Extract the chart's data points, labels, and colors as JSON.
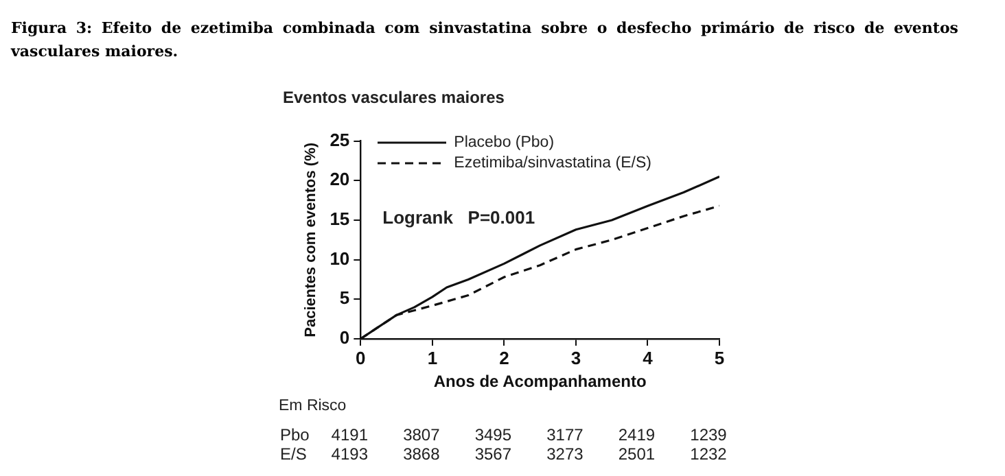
{
  "chart_data": {
    "type": "line",
    "title": "Figura 3: Efeito de ezetimiba combinada com sinvastatina sobre o desfecho primário de risco de eventos vasculares maiores.",
    "subtitle": "Eventos vasculares maiores",
    "xlabel": "Anos de Acompanhamento",
    "ylabel": "Pacientes com eventos (%)",
    "series": [
      {
        "name": "Placebo (Pbo)",
        "color": "#111111",
        "line_style": "solid",
        "x": [
          0,
          0.25,
          0.5,
          0.75,
          1,
          1.2,
          1.5,
          2,
          2.5,
          3,
          3.5,
          4,
          4.5,
          5
        ],
        "values": [
          0,
          1.5,
          3,
          4,
          5.3,
          6.5,
          7.5,
          9.5,
          11.8,
          13.8,
          15,
          16.8,
          18.5,
          20.5
        ]
      },
      {
        "name": "Ezetimiba/sinvastatina (E/S)",
        "color": "#111111",
        "line_style": "dashed",
        "x": [
          0,
          0.25,
          0.5,
          0.75,
          1,
          1.5,
          2,
          2.5,
          3,
          3.5,
          4,
          4.5,
          5
        ],
        "values": [
          0,
          1.5,
          3,
          3.6,
          4.2,
          5.5,
          7.8,
          9.3,
          11.3,
          12.5,
          14,
          15.5,
          16.8
        ]
      }
    ],
    "xlim": [
      0,
      5
    ],
    "xticks": [
      0,
      1,
      2,
      3,
      4,
      5
    ],
    "ylim": [
      0,
      25
    ],
    "yticks": [
      0,
      5,
      10,
      15,
      20,
      25
    ],
    "grid": false,
    "legend": "top left",
    "marker": "none",
    "annotations": [
      "Logrank   P=0.001",
      "Em Risco",
      "Pbo 4191 3807 3495 3177 2419 1239",
      "E/S 4193 3868 3567 3273 2501 1232"
    ]
  }
}
